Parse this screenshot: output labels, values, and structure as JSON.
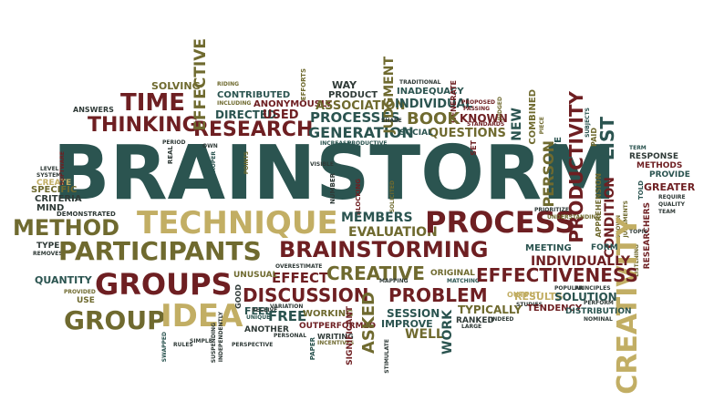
{
  "colors": {
    "teal": "#2b5450",
    "maroon": "#6e1f22",
    "olive": "#6f6a2f",
    "khaki": "#c2ae64",
    "dark": "#2f3a37"
  },
  "words": {
    "brainstorm": "BRAINSTORM",
    "technique": "TECHNIQUE",
    "participants": "PARTICIPANTS",
    "brainstorming": "BRAINSTORMING",
    "process": "PROCESS",
    "groups": "GROUPS",
    "group": "GROUP",
    "idea": "IDEA",
    "method": "METHOD",
    "creativity": "CREATIVITY",
    "productivity": "PRODUCTIVITY",
    "effectiveness": "EFFECTIVENESS",
    "creative": "CREATIVE",
    "discussion": "DISCUSSION",
    "problem": "PROBLEM",
    "thinking": "THINKING",
    "research": "RESEARCH",
    "generation": "GENERATION",
    "processes": "PROCESSES",
    "time": "TIME",
    "book": "BOOK",
    "questions": "QUESTIONS",
    "association": "ASSOCIATION",
    "used": "USED",
    "directed": "DIRECTED",
    "known": "KNOWN",
    "individual": "INDIVIDUAL",
    "person": "PERSON",
    "list": "LIST",
    "condition": "CONDITION",
    "members": "MEMBERS",
    "evaluation": "EVALUATION",
    "effective": "EFFECTIVE",
    "judgment": "JUDGMENT",
    "session": "SESSION",
    "asked": "ASKED",
    "work": "WORK",
    "well": "WELL",
    "improve": "IMPROVE",
    "free": "FREE",
    "effect": "EFFECT",
    "individually": "INDIVIDUALLY",
    "solution": "SOLUTION",
    "form": "FORM",
    "meeting": "MEETING",
    "typically": "TYPICALLY",
    "ranked": "RANKED",
    "results": "RESULTS",
    "quantity": "QUANTITY",
    "working": "WORKING",
    "feel": "FEEL",
    "another": "ANOTHER",
    "outperformed": "OUTPERFORMED",
    "writing": "WRITING",
    "unusual": "UNUSUAL",
    "new": "NEW",
    "solving": "SOLVING",
    "answers": "ANSWERS",
    "contributed": "CONTRIBUTED",
    "anonymously": "ANONYMOUSLY",
    "way": "WAY",
    "product": "PRODUCT",
    "inadequacy": "INADEQUACY",
    "social": "SOCIAL",
    "greater": "GREATER",
    "provide": "PROVIDE",
    "methods": "METHODS",
    "response": "RESPONSE",
    "real": "REAL",
    "collective": "COLLECTIVE",
    "told": "TOLD",
    "team": "TEAM",
    "quality": "QUALITY",
    "require": "REQUIRE",
    "researchers": "RESEARCHERS",
    "apprehension": "APPREHENSION",
    "distribution": "DISTRIBUTION",
    "tendency": "TENDENCY",
    "significant": "SIGNIFICANT",
    "mapping": "MAPPING",
    "original": "ORIGINAL",
    "use": "USE",
    "demonstrated": "DEMONSTRATED",
    "specific": "SPECIFIC",
    "criteria": "CRITERIA",
    "mind": "MIND",
    "create": "CREATE",
    "type": "TYPE",
    "removes": "REMOVES",
    "provided": "PROVIDED",
    "swapped": "SWAPPED",
    "rules": "RULES",
    "simple": "SIMPLE",
    "paper": "PAPER",
    "personal": "PERSONAL",
    "perspective": "PERSPECTIVE",
    "incentives": "INCENTIVES",
    "stimulate": "STIMULATE",
    "good": "GOOD",
    "unique": "UNIQUE",
    "variation": "VARIATION",
    "receive": "RECEIVE",
    "overestimate": "OVERESTIMATE",
    "blocking": "BLOCKING",
    "number": "NUMBER",
    "visible": "VISIBLE",
    "solicited": "SOLICITED",
    "set": "SET",
    "share": "SHARE",
    "increase": "INCREASE",
    "productive": "PRODUCTIVE",
    "generate": "GENERATE",
    "traditional": "TRADITIONAL",
    "proposed": "PROPOSED",
    "passing": "PASSING",
    "judged": "JUDGED",
    "standards": "STANDARDS",
    "combined": "COMBINED",
    "piece": "PIECE",
    "subjects": "SUBJECTS",
    "paid": "PAID",
    "term": "TERM",
    "topic": "TOPIC",
    "listening": "LISTENING",
    "shown": "SHOWN",
    "judgments": "JUDGMENTS",
    "prioritize": "PRIORITIZE",
    "understanding": "UNDERSTANDING",
    "popular": "POPULAR",
    "principles": "PRINCIPLES",
    "studies": "STUDIES",
    "matching": "MATCHING",
    "nominal": "NOMINAL",
    "output": "OUTPUT",
    "indeed": "INDEED",
    "large": "LARGE",
    "efforts": "EFFORTS",
    "riding": "RIDING",
    "including": "INCLUDING",
    "period": "PERIOD",
    "own": "OWN",
    "proper": "PROPER",
    "points": "POINTS",
    "level": "LEVEL",
    "system": "SYSTEM",
    "software": "SOFTWARE",
    "independently": "INDEPENDENTLY",
    "suspending": "SUSPENDING",
    "perform": "PERFORM"
  }
}
